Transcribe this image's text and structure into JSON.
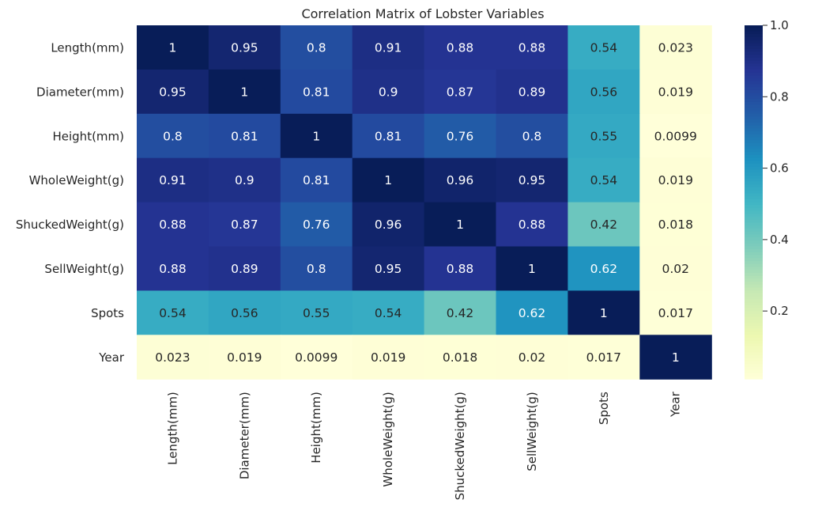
{
  "chart_data": {
    "type": "heatmap",
    "title": "Correlation Matrix of Lobster Variables",
    "xlabel": "",
    "ylabel": "",
    "colormap": "YlGnBu",
    "color_range": [
      0.0099,
      1.0
    ],
    "colorbar_ticks": [
      {
        "value": 0.2,
        "label": "0.2"
      },
      {
        "value": 0.4,
        "label": "0.4"
      },
      {
        "value": 0.6,
        "label": "0.6"
      },
      {
        "value": 0.8,
        "label": "0.8"
      },
      {
        "value": 1.0,
        "label": "1.0"
      }
    ],
    "x_categories": [
      "Length(mm)",
      "Diameter(mm)",
      "Height(mm)",
      "WholeWeight(g)",
      "ShuckedWeight(g)",
      "SellWeight(g)",
      "Spots",
      "Year"
    ],
    "y_categories": [
      "Length(mm)",
      "Diameter(mm)",
      "Height(mm)",
      "WholeWeight(g)",
      "ShuckedWeight(g)",
      "SellWeight(g)",
      "Spots",
      "Year"
    ],
    "values": [
      [
        1,
        0.95,
        0.8,
        0.91,
        0.88,
        0.88,
        0.54,
        0.023
      ],
      [
        0.95,
        1,
        0.81,
        0.9,
        0.87,
        0.89,
        0.56,
        0.019
      ],
      [
        0.8,
        0.81,
        1,
        0.81,
        0.76,
        0.8,
        0.55,
        0.0099
      ],
      [
        0.91,
        0.9,
        0.81,
        1,
        0.96,
        0.95,
        0.54,
        0.019
      ],
      [
        0.88,
        0.87,
        0.76,
        0.96,
        1,
        0.88,
        0.42,
        0.018
      ],
      [
        0.88,
        0.89,
        0.8,
        0.95,
        0.88,
        1,
        0.62,
        0.02
      ],
      [
        0.54,
        0.56,
        0.55,
        0.54,
        0.42,
        0.62,
        1,
        0.017
      ],
      [
        0.023,
        0.019,
        0.0099,
        0.019,
        0.018,
        0.02,
        0.017,
        1
      ]
    ],
    "value_labels": [
      [
        "1",
        "0.95",
        "0.8",
        "0.91",
        "0.88",
        "0.88",
        "0.54",
        "0.023"
      ],
      [
        "0.95",
        "1",
        "0.81",
        "0.9",
        "0.87",
        "0.89",
        "0.56",
        "0.019"
      ],
      [
        "0.8",
        "0.81",
        "1",
        "0.81",
        "0.76",
        "0.8",
        "0.55",
        "0.0099"
      ],
      [
        "0.91",
        "0.9",
        "0.81",
        "1",
        "0.96",
        "0.95",
        "0.54",
        "0.019"
      ],
      [
        "0.88",
        "0.87",
        "0.76",
        "0.96",
        "1",
        "0.88",
        "0.42",
        "0.018"
      ],
      [
        "0.88",
        "0.89",
        "0.8",
        "0.95",
        "0.88",
        "1",
        "0.62",
        "0.02"
      ],
      [
        "0.54",
        "0.56",
        "0.55",
        "0.54",
        "0.42",
        "0.62",
        "1",
        "0.017"
      ],
      [
        "0.023",
        "0.019",
        "0.0099",
        "0.019",
        "0.018",
        "0.02",
        "0.017",
        "1"
      ]
    ],
    "colorbar": true,
    "annotated": true
  }
}
